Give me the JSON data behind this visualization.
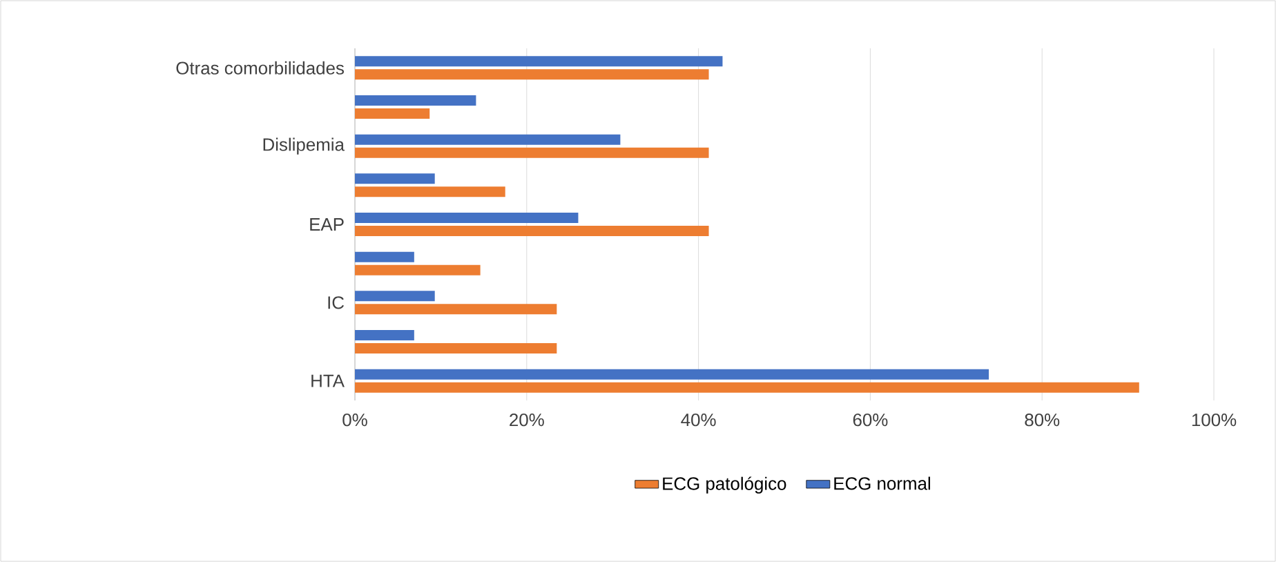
{
  "chart_data": {
    "type": "bar",
    "orientation": "horizontal",
    "categories": [
      "Otras comorbilidades",
      null,
      "Dislipemia",
      null,
      "EAP",
      null,
      "IC",
      null,
      "HTA"
    ],
    "series": [
      {
        "name": "ECG patológico",
        "color": "#ed7d31",
        "values": [
          41.2,
          8.7,
          41.2,
          17.5,
          41.2,
          14.6,
          23.5,
          23.5,
          91.3
        ]
      },
      {
        "name": "ECG normal",
        "color": "#4472c4",
        "values": [
          42.8,
          14.1,
          30.9,
          9.3,
          26.0,
          6.9,
          9.3,
          6.9,
          73.8
        ]
      }
    ],
    "xlim": [
      0,
      100
    ],
    "xticks": [
      {
        "value": 0,
        "label": "0%"
      },
      {
        "value": 20,
        "label": "20%"
      },
      {
        "value": 40,
        "label": "40%"
      },
      {
        "value": 60,
        "label": "60%"
      },
      {
        "value": 80,
        "label": "80%"
      },
      {
        "value": 100,
        "label": "100%"
      }
    ],
    "grid": "x",
    "legend": "bottom"
  }
}
